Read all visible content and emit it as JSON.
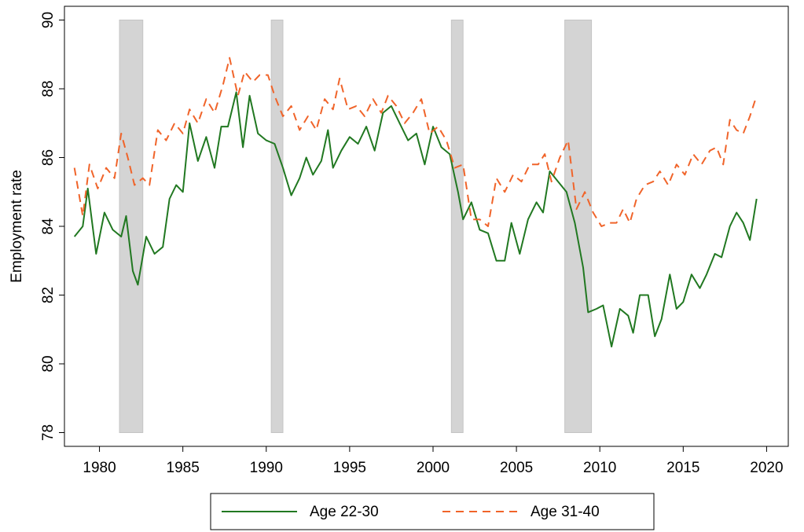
{
  "chart_data": {
    "type": "line",
    "y_label": "Employment rate",
    "xlim": [
      1977.9,
      2021.3
    ],
    "ylim": [
      77.6,
      90.4
    ],
    "xticks": [
      1980,
      1985,
      1990,
      1995,
      2000,
      2005,
      2010,
      2015,
      2020
    ],
    "yticks": [
      78,
      80,
      82,
      84,
      86,
      88,
      90
    ],
    "shaded_periods": [
      [
        1981.2,
        1982.6
      ],
      [
        1990.3,
        1991.0
      ],
      [
        2001.1,
        2001.8
      ],
      [
        2007.9,
        2009.5
      ]
    ],
    "series": [
      {
        "name": "Age 22-30",
        "color": "#217821",
        "dash": false,
        "x": [
          1978.5,
          1979.0,
          1979.3,
          1979.8,
          1980.3,
          1980.8,
          1981.3,
          1981.6,
          1982.0,
          1982.3,
          1982.8,
          1983.3,
          1983.8,
          1984.2,
          1984.6,
          1985.0,
          1985.4,
          1985.9,
          1986.4,
          1986.9,
          1987.3,
          1987.7,
          1988.2,
          1988.6,
          1989.0,
          1989.5,
          1990.0,
          1990.5,
          1991.0,
          1991.5,
          1992.0,
          1992.4,
          1992.8,
          1993.3,
          1993.7,
          1994.0,
          1994.5,
          1995.0,
          1995.5,
          1996.0,
          1996.5,
          1997.0,
          1997.5,
          1998.0,
          1998.5,
          1999.0,
          1999.5,
          2000.0,
          2000.5,
          2001.0,
          2001.5,
          2001.8,
          2002.3,
          2002.8,
          2003.3,
          2003.8,
          2004.3,
          2004.7,
          2005.2,
          2005.7,
          2006.2,
          2006.6,
          2007.0,
          2007.5,
          2008.0,
          2008.5,
          2009.0,
          2009.3,
          2009.8,
          2010.2,
          2010.7,
          2011.2,
          2011.7,
          2012.0,
          2012.4,
          2012.9,
          2013.3,
          2013.7,
          2014.2,
          2014.6,
          2015.0,
          2015.5,
          2016.0,
          2016.4,
          2016.9,
          2017.3,
          2017.8,
          2018.2,
          2018.6,
          2019.0,
          2019.4
        ],
        "values": [
          83.7,
          84.0,
          85.1,
          83.2,
          84.4,
          83.9,
          83.7,
          84.3,
          82.7,
          82.3,
          83.7,
          83.2,
          83.4,
          84.8,
          85.2,
          85.0,
          87.0,
          85.9,
          86.6,
          85.7,
          86.9,
          86.9,
          87.9,
          86.3,
          87.8,
          86.7,
          86.5,
          86.4,
          85.7,
          84.9,
          85.4,
          86.0,
          85.5,
          85.9,
          86.8,
          85.7,
          86.2,
          86.6,
          86.4,
          86.9,
          86.2,
          87.3,
          87.5,
          87.0,
          86.5,
          86.7,
          85.8,
          86.9,
          86.3,
          86.1,
          85.0,
          84.2,
          84.7,
          83.9,
          83.8,
          83.0,
          83.0,
          84.1,
          83.2,
          84.2,
          84.7,
          84.4,
          85.6,
          85.3,
          85.0,
          84.1,
          82.8,
          81.5,
          81.6,
          81.7,
          80.5,
          81.6,
          81.4,
          80.9,
          82.0,
          82.0,
          80.8,
          81.3,
          82.6,
          81.6,
          81.8,
          82.6,
          82.2,
          82.6,
          83.2,
          83.1,
          84.0,
          84.4,
          84.1,
          83.6,
          84.8
        ]
      },
      {
        "name": "Age 31-40",
        "color": "#f0642a",
        "dash": true,
        "x": [
          1978.5,
          1979.0,
          1979.4,
          1979.9,
          1980.4,
          1980.9,
          1981.3,
          1981.7,
          1982.1,
          1982.6,
          1983.0,
          1983.5,
          1984.0,
          1984.5,
          1985.0,
          1985.4,
          1985.9,
          1986.4,
          1986.9,
          1987.4,
          1987.8,
          1988.3,
          1988.7,
          1989.2,
          1989.6,
          1990.1,
          1990.5,
          1991.0,
          1991.5,
          1992.0,
          1992.5,
          1993.0,
          1993.5,
          1994.0,
          1994.4,
          1994.9,
          1995.4,
          1995.9,
          1996.4,
          1996.9,
          1997.3,
          1997.8,
          1998.3,
          1998.8,
          1999.3,
          1999.8,
          2000.3,
          2000.8,
          2001.3,
          2001.8,
          2002.3,
          2002.8,
          2003.3,
          2003.8,
          2004.3,
          2004.8,
          2005.3,
          2005.8,
          2006.3,
          2006.7,
          2007.1,
          2007.6,
          2008.1,
          2008.6,
          2009.1,
          2009.6,
          2010.1,
          2010.6,
          2011.0,
          2011.4,
          2011.8,
          2012.2,
          2012.7,
          2013.2,
          2013.6,
          2014.1,
          2014.6,
          2015.1,
          2015.6,
          2016.1,
          2016.6,
          2017.0,
          2017.4,
          2017.8,
          2018.2,
          2018.6,
          2019.0,
          2019.4
        ],
        "values": [
          85.7,
          84.3,
          85.8,
          85.1,
          85.7,
          85.4,
          86.7,
          86.0,
          85.2,
          85.4,
          85.2,
          86.8,
          86.5,
          87.0,
          86.7,
          87.4,
          87.0,
          87.7,
          87.3,
          88.1,
          88.9,
          87.8,
          88.5,
          88.2,
          88.4,
          88.4,
          87.8,
          87.2,
          87.5,
          86.8,
          87.2,
          86.8,
          87.7,
          87.4,
          88.3,
          87.4,
          87.5,
          87.2,
          87.7,
          87.3,
          87.8,
          87.5,
          87.0,
          87.3,
          87.7,
          86.7,
          86.9,
          86.5,
          85.7,
          85.8,
          84.2,
          84.2,
          84.0,
          85.4,
          85.0,
          85.5,
          85.3,
          85.8,
          85.8,
          86.1,
          85.3,
          86.0,
          86.5,
          84.5,
          85.0,
          84.4,
          84.0,
          84.1,
          84.1,
          84.5,
          84.1,
          84.8,
          85.2,
          85.3,
          85.6,
          85.2,
          85.8,
          85.5,
          86.1,
          85.8,
          86.2,
          86.3,
          85.8,
          87.1,
          86.8,
          86.7,
          87.2,
          87.8
        ]
      }
    ]
  }
}
